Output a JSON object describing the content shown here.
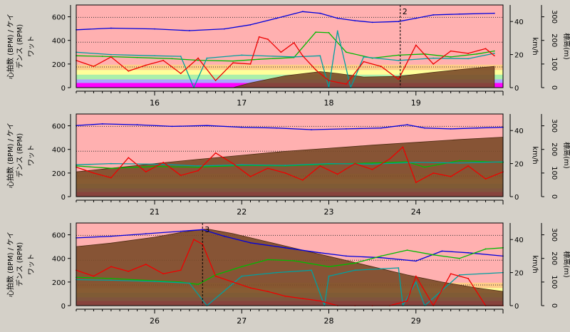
{
  "chart_data": [
    {
      "type": "line",
      "left_axis_label": "心拍数 (BPM) / ケイデンス (RPM)",
      "left_axis_label_line1": "心拍数 (BPM) / ケイ",
      "left_axis_label_line2": "デンス (RPM)",
      "watt_label": "ワット",
      "kmh_label": "km/h",
      "elev_label": "標高(m)",
      "x_range": [
        15.1,
        20.0
      ],
      "x_ticks": [
        "16",
        "17",
        "18",
        "19"
      ],
      "watt_ticks": [
        "0",
        "200",
        "400",
        "600"
      ],
      "speed_ticks": [
        "0",
        "20",
        "40"
      ],
      "elev_ticks": [
        "0",
        "100",
        "200",
        "300"
      ],
      "watt_range": [
        0,
        700
      ],
      "speed_range": [
        0,
        50
      ],
      "elev_range": [
        0,
        350
      ],
      "marker": {
        "label": "2",
        "x": 18.82
      },
      "zone_colors": [
        "#ff00ff",
        "#a8a8ff",
        "#aaf0aa",
        "#ffff99",
        "#ffcc88",
        "#ffb0b0"
      ],
      "series": [
        {
          "name": "speed",
          "color": "#0000dd",
          "axis": "speed",
          "x": [
            15.1,
            15.5,
            16.0,
            16.4,
            16.8,
            17.1,
            17.4,
            17.7,
            17.9,
            18.1,
            18.3,
            18.5,
            18.8,
            19.0,
            19.2,
            19.5,
            19.9
          ],
          "y": [
            35,
            36,
            35.5,
            34.5,
            35.5,
            38,
            42,
            46,
            45,
            42,
            40.5,
            39.5,
            40,
            42,
            44,
            44.5,
            45
          ]
        },
        {
          "name": "altitude",
          "color": "#7a4a28",
          "axis": "elev",
          "x": [
            15.1,
            16.9,
            17.1,
            17.5,
            17.9,
            18.1,
            18.4,
            18.8,
            19.2,
            19.6,
            19.9
          ],
          "y": [
            0,
            0,
            20,
            50,
            68,
            60,
            45,
            48,
            65,
            80,
            90
          ]
        },
        {
          "name": "heart_rate",
          "color": "#00bb00",
          "axis": "watt",
          "x": [
            15.1,
            15.4,
            15.8,
            16.2,
            16.5,
            16.9,
            17.2,
            17.6,
            17.85,
            18.0,
            18.2,
            18.5,
            18.8,
            19.1,
            19.4,
            19.7,
            19.9
          ],
          "y": [
            270,
            265,
            255,
            245,
            232,
            225,
            240,
            255,
            470,
            465,
            300,
            250,
            275,
            285,
            260,
            285,
            310
          ]
        },
        {
          "name": "cadence",
          "color": "#00a0a0",
          "axis": "watt",
          "x": [
            15.1,
            15.5,
            16.0,
            16.3,
            16.45,
            16.6,
            17.0,
            17.6,
            17.9,
            18.0,
            18.1,
            18.25,
            18.4,
            18.8,
            19.2,
            19.6,
            19.9
          ],
          "y": [
            300,
            280,
            270,
            265,
            0,
            250,
            275,
            260,
            270,
            0,
            480,
            0,
            260,
            230,
            250,
            245,
            290
          ]
        },
        {
          "name": "power",
          "color": "#ee0000",
          "axis": "watt",
          "x": [
            15.1,
            15.3,
            15.5,
            15.7,
            15.9,
            16.1,
            16.3,
            16.5,
            16.7,
            16.9,
            17.1,
            17.2,
            17.3,
            17.45,
            17.6,
            17.7,
            17.85,
            18.0,
            18.2,
            18.4,
            18.6,
            18.8,
            19.0,
            19.2,
            19.4,
            19.6,
            19.8,
            19.9
          ],
          "y": [
            230,
            180,
            260,
            140,
            190,
            230,
            120,
            250,
            60,
            210,
            200,
            430,
            410,
            300,
            380,
            270,
            150,
            60,
            30,
            220,
            180,
            70,
            360,
            200,
            310,
            290,
            330,
            270
          ]
        }
      ]
    },
    {
      "type": "line",
      "left_axis_label": "心拍数 (BPM) / ケイデンス (RPM)",
      "left_axis_label_line1": "心拍数 (BPM) / ケイ",
      "left_axis_label_line2": "デンス (RPM)",
      "watt_label": "ワット",
      "kmh_label": "km/h",
      "elev_label": "標高(m)",
      "x_range": [
        20.1,
        25.0
      ],
      "x_ticks": [
        "21",
        "22",
        "23",
        "24"
      ],
      "watt_ticks": [
        "0",
        "200",
        "400",
        "600"
      ],
      "speed_ticks": [
        "0",
        "20",
        "40"
      ],
      "elev_ticks": [
        "0",
        "100",
        "200",
        "300"
      ],
      "watt_range": [
        0,
        700
      ],
      "speed_range": [
        0,
        50
      ],
      "elev_range": [
        0,
        350
      ],
      "marker": null,
      "zone_colors": [
        "#ff00ff",
        "#a8a8ff",
        "#aaf0aa",
        "#ffff99",
        "#ffcc88",
        "#ffb0b0"
      ],
      "series": [
        {
          "name": "speed",
          "color": "#0000dd",
          "axis": "speed",
          "x": [
            20.1,
            20.4,
            20.8,
            21.2,
            21.6,
            22.0,
            22.4,
            22.8,
            23.2,
            23.6,
            23.9,
            24.1,
            24.4,
            24.7,
            25.0
          ],
          "y": [
            43,
            44,
            43.5,
            42.5,
            43,
            42,
            41.5,
            40.5,
            41,
            41.5,
            43.5,
            41.5,
            41,
            41.5,
            42
          ]
        },
        {
          "name": "altitude",
          "color": "#7a4a28",
          "axis": "elev",
          "x": [
            20.1,
            20.5,
            21.0,
            21.5,
            22.0,
            22.5,
            23.0,
            23.5,
            24.0,
            24.5,
            25.0
          ],
          "y": [
            105,
            120,
            140,
            158,
            175,
            192,
            205,
            218,
            230,
            242,
            252
          ]
        },
        {
          "name": "heart_rate",
          "color": "#00bb00",
          "axis": "watt",
          "x": [
            20.1,
            20.5,
            21.0,
            21.5,
            22.0,
            22.5,
            23.0,
            23.5,
            23.9,
            24.1,
            24.5,
            25.0
          ],
          "y": [
            260,
            240,
            255,
            250,
            265,
            260,
            275,
            285,
            295,
            250,
            305,
            290
          ]
        },
        {
          "name": "cadence",
          "color": "#00a0a0",
          "axis": "watt",
          "x": [
            20.1,
            20.5,
            21.0,
            21.5,
            22.0,
            22.5,
            23.0,
            23.5,
            24.0,
            24.5,
            25.0
          ],
          "y": [
            270,
            280,
            275,
            260,
            270,
            265,
            280,
            275,
            290,
            285,
            295
          ]
        },
        {
          "name": "power",
          "color": "#ee0000",
          "axis": "watt",
          "x": [
            20.1,
            20.3,
            20.5,
            20.7,
            20.9,
            21.1,
            21.3,
            21.5,
            21.7,
            21.9,
            22.1,
            22.3,
            22.5,
            22.7,
            22.9,
            23.1,
            23.3,
            23.5,
            23.7,
            23.85,
            24.0,
            24.2,
            24.4,
            24.6,
            24.8,
            25.0
          ],
          "y": [
            250,
            200,
            160,
            330,
            210,
            290,
            180,
            220,
            370,
            280,
            170,
            240,
            200,
            140,
            260,
            190,
            280,
            230,
            320,
            420,
            120,
            200,
            170,
            260,
            150,
            210
          ]
        }
      ]
    },
    {
      "type": "line",
      "left_axis_label": "心拍数 (BPM) / ケイデンス (RPM)",
      "left_axis_label_line1": "心拍数 (BPM) / ケイ",
      "left_axis_label_line2": "デンス (RPM)",
      "watt_label": "ワット",
      "kmh_label": "km/h",
      "elev_label": "標高(m)",
      "x_range": [
        25.1,
        30.0
      ],
      "x_ticks": [
        "26",
        "27",
        "28",
        "29"
      ],
      "watt_ticks": [
        "0",
        "200",
        "400",
        "600"
      ],
      "speed_ticks": [
        "0",
        "20",
        "40"
      ],
      "elev_ticks": [
        "0",
        "100",
        "200",
        "300"
      ],
      "watt_range": [
        0,
        700
      ],
      "speed_range": [
        0,
        50
      ],
      "elev_range": [
        0,
        350
      ],
      "marker": {
        "label": "3",
        "x": 26.55
      },
      "zone_colors": [
        "#ff00ff",
        "#a8a8ff",
        "#aaf0aa",
        "#ffff99",
        "#ffcc88",
        "#ffb0b0"
      ],
      "series": [
        {
          "name": "speed",
          "color": "#0000dd",
          "axis": "speed",
          "x": [
            25.1,
            25.5,
            25.9,
            26.3,
            26.55,
            26.8,
            27.1,
            27.5,
            27.9,
            28.2,
            28.6,
            29.0,
            29.3,
            29.6,
            30.0
          ],
          "y": [
            41,
            42,
            43.5,
            45,
            46,
            42,
            38,
            35,
            32,
            30,
            29,
            27,
            33,
            32,
            30
          ]
        },
        {
          "name": "altitude",
          "color": "#7a4a28",
          "axis": "elev",
          "x": [
            25.1,
            25.5,
            26.0,
            26.3,
            26.6,
            26.9,
            27.3,
            27.7,
            28.1,
            28.5,
            28.9,
            29.3,
            29.7,
            30.0
          ],
          "y": [
            250,
            265,
            290,
            310,
            325,
            305,
            270,
            235,
            200,
            165,
            130,
            100,
            75,
            60
          ]
        },
        {
          "name": "heart_rate",
          "color": "#00bb00",
          "axis": "watt",
          "x": [
            25.1,
            25.5,
            26.0,
            26.3,
            26.5,
            26.7,
            27.0,
            27.3,
            27.6,
            28.0,
            28.3,
            28.6,
            28.9,
            29.2,
            29.5,
            29.8,
            30.0
          ],
          "y": [
            240,
            230,
            210,
            200,
            180,
            260,
            330,
            390,
            380,
            330,
            360,
            420,
            470,
            430,
            400,
            480,
            490
          ]
        },
        {
          "name": "cadence",
          "color": "#00a0a0",
          "axis": "watt",
          "x": [
            25.1,
            25.5,
            26.0,
            26.4,
            26.6,
            27.0,
            27.4,
            27.8,
            27.95,
            28.0,
            28.3,
            28.8,
            28.85,
            29.0,
            29.1,
            29.5,
            30.0
          ],
          "y": [
            220,
            215,
            205,
            190,
            0,
            250,
            280,
            300,
            0,
            250,
            300,
            320,
            0,
            200,
            0,
            260,
            280
          ]
        },
        {
          "name": "power",
          "color": "#ee0000",
          "axis": "watt",
          "x": [
            25.1,
            25.3,
            25.5,
            25.7,
            25.9,
            26.1,
            26.3,
            26.45,
            26.55,
            26.7,
            26.9,
            27.1,
            27.3,
            27.5,
            27.7,
            27.9,
            28.1,
            28.3,
            28.5,
            28.7,
            28.9,
            29.0,
            29.2,
            29.4,
            29.6,
            29.8,
            30.0
          ],
          "y": [
            300,
            250,
            330,
            290,
            350,
            270,
            300,
            560,
            520,
            250,
            200,
            150,
            120,
            80,
            60,
            40,
            0,
            0,
            0,
            0,
            40,
            250,
            0,
            270,
            230,
            0,
            0
          ]
        }
      ]
    }
  ]
}
